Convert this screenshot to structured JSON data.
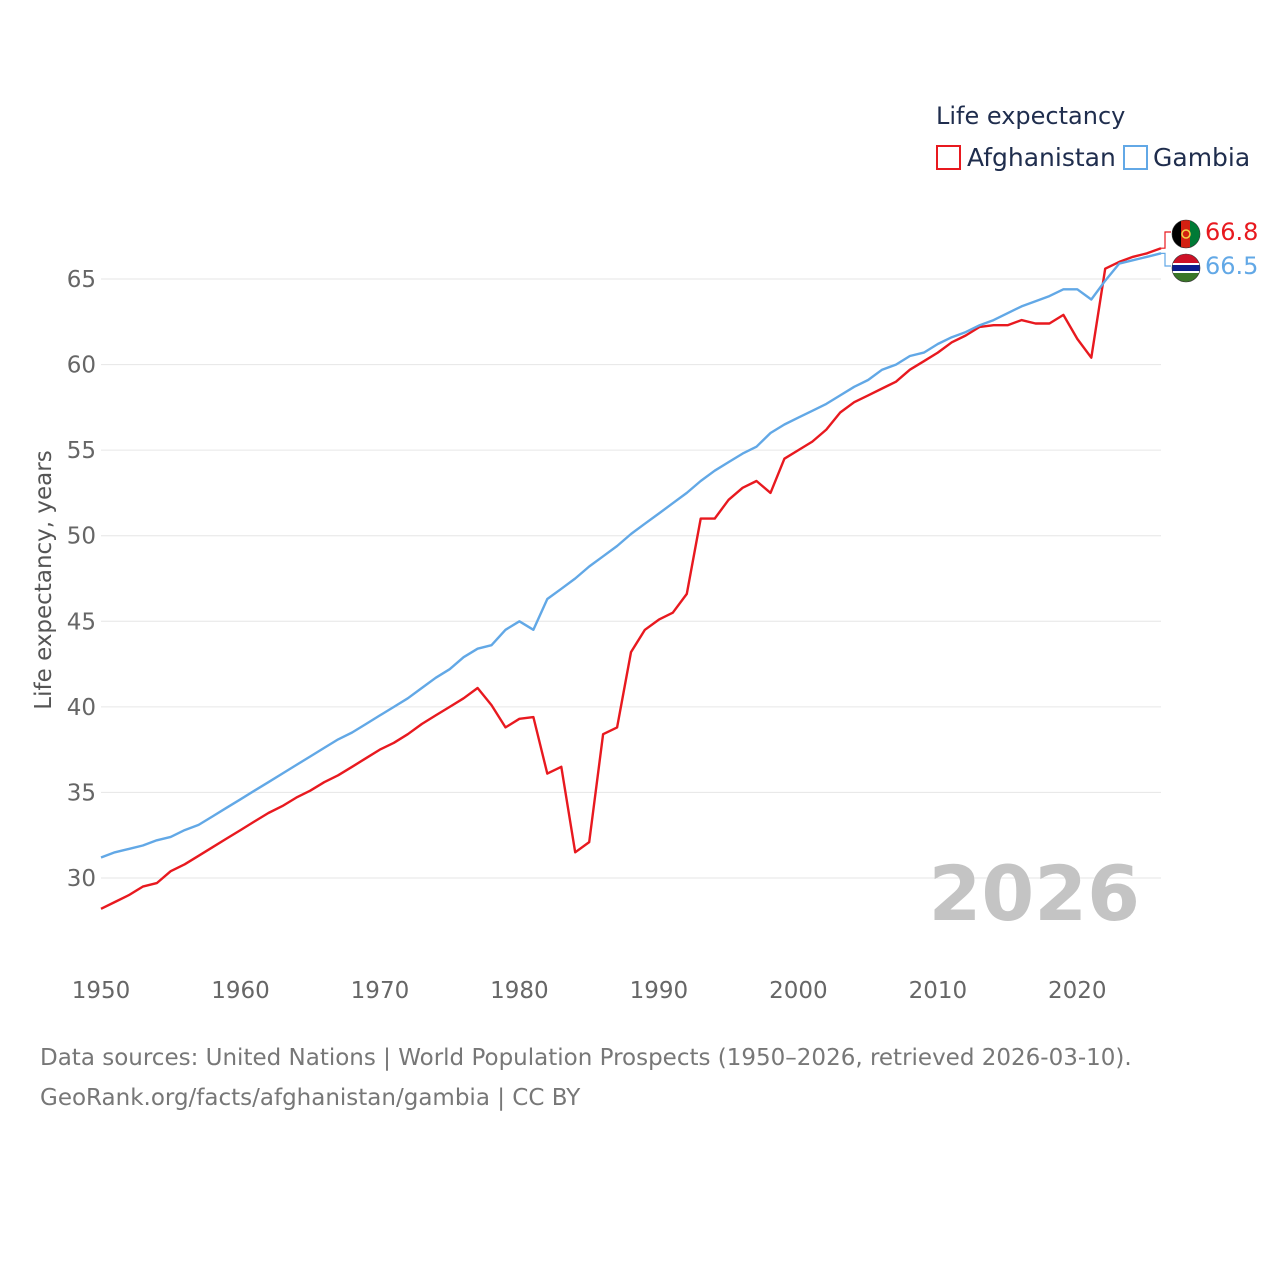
{
  "chart_data": {
    "type": "line",
    "title": "",
    "ylabel": "Life expectancy, years",
    "xlabel": "",
    "xlim": [
      1950,
      2026
    ],
    "ylim": [
      26,
      69
    ],
    "yticks": [
      30,
      35,
      40,
      45,
      50,
      55,
      60,
      65
    ],
    "xticks": [
      1950,
      1960,
      1970,
      1980,
      1990,
      2000,
      2010,
      2020
    ],
    "year_watermark": "2026",
    "legend": {
      "title": "Life expectancy",
      "position": "top-right"
    },
    "x": [
      1950,
      1951,
      1952,
      1953,
      1954,
      1955,
      1956,
      1957,
      1958,
      1959,
      1960,
      1961,
      1962,
      1963,
      1964,
      1965,
      1966,
      1967,
      1968,
      1969,
      1970,
      1971,
      1972,
      1973,
      1974,
      1975,
      1976,
      1977,
      1978,
      1979,
      1980,
      1981,
      1982,
      1983,
      1984,
      1985,
      1986,
      1987,
      1988,
      1989,
      1990,
      1991,
      1992,
      1993,
      1994,
      1995,
      1996,
      1997,
      1998,
      1999,
      2000,
      2001,
      2002,
      2003,
      2004,
      2005,
      2006,
      2007,
      2008,
      2009,
      2010,
      2011,
      2012,
      2013,
      2014,
      2015,
      2016,
      2017,
      2018,
      2019,
      2020,
      2021,
      2022,
      2023,
      2024,
      2025,
      2026
    ],
    "series": [
      {
        "name": "Afghanistan",
        "color": "#e8191f",
        "end_label": "66.8",
        "flag": "afghanistan-flag-icon",
        "values": [
          28.2,
          28.6,
          29.0,
          29.5,
          29.7,
          30.4,
          30.8,
          31.3,
          31.8,
          32.3,
          32.8,
          33.3,
          33.8,
          34.2,
          34.7,
          35.1,
          35.6,
          36.0,
          36.5,
          37.0,
          37.5,
          37.9,
          38.4,
          39.0,
          39.5,
          40.0,
          40.5,
          41.1,
          40.1,
          38.8,
          39.3,
          39.4,
          36.1,
          36.5,
          31.5,
          32.1,
          38.4,
          38.8,
          43.2,
          44.5,
          45.1,
          45.5,
          46.6,
          51.0,
          51.0,
          52.1,
          52.8,
          53.2,
          52.5,
          54.5,
          55.0,
          55.5,
          56.2,
          57.2,
          57.8,
          58.2,
          58.6,
          59.0,
          59.7,
          60.2,
          60.7,
          61.3,
          61.7,
          62.2,
          62.3,
          62.3,
          62.6,
          62.4,
          62.4,
          62.9,
          61.5,
          60.4,
          65.6,
          66.0,
          66.3,
          66.5,
          66.8
        ]
      },
      {
        "name": "Gambia",
        "color": "#62a8e6",
        "end_label": "66.5",
        "flag": "gambia-flag-icon",
        "values": [
          31.2,
          31.5,
          31.7,
          31.9,
          32.2,
          32.4,
          32.8,
          33.1,
          33.6,
          34.1,
          34.6,
          35.1,
          35.6,
          36.1,
          36.6,
          37.1,
          37.6,
          38.1,
          38.5,
          39.0,
          39.5,
          40.0,
          40.5,
          41.1,
          41.7,
          42.2,
          42.9,
          43.4,
          43.6,
          44.5,
          45.0,
          44.5,
          46.3,
          46.9,
          47.5,
          48.2,
          48.8,
          49.4,
          50.1,
          50.7,
          51.3,
          51.9,
          52.5,
          53.2,
          53.8,
          54.3,
          54.8,
          55.2,
          56.0,
          56.5,
          56.9,
          57.3,
          57.7,
          58.2,
          58.7,
          59.1,
          59.7,
          60.0,
          60.5,
          60.7,
          61.2,
          61.6,
          61.9,
          62.3,
          62.6,
          63.0,
          63.4,
          63.7,
          64.0,
          64.4,
          64.4,
          63.8,
          64.9,
          65.9,
          66.1,
          66.3,
          66.5
        ]
      }
    ]
  },
  "footer": {
    "line1": "Data sources: United Nations | World Population Prospects (1950–2026, retrieved 2026-03-10).",
    "line2": "GeoRank.org/facts/afghanistan/gambia | CC BY"
  }
}
